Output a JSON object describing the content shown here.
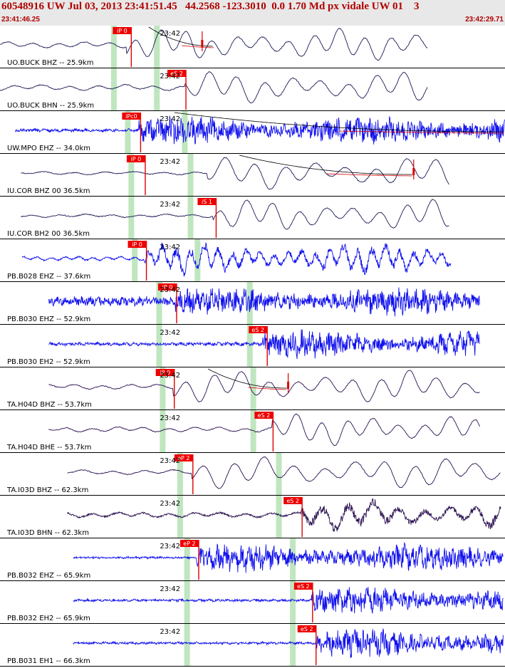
{
  "header": {
    "title": "60548916 UW Jul 03, 2013 23:41:51.45   44.2568 -123.3010  0.0 1.70 Md px vidale UW 01    3",
    "start_time": "23:41:46.25",
    "end_time": "23:42:29.71"
  },
  "colors": {
    "header_text": "#b00000",
    "pick_box": "#ee0000",
    "pick_line": "#dd0000",
    "green_band": "#bfe6bf",
    "trace_blue": "#1010ee",
    "trace_navy": "#1a1a55",
    "trace_purple": "#2a1050"
  },
  "chart_data": {
    "type": "line",
    "title": "",
    "x_unit": "seconds after 23:41:46.25",
    "x_range": [
      0,
      43.46
    ],
    "minute_tick": {
      "label": "23:42",
      "x": 13.75
    },
    "traces": [
      {
        "label": "UO.BUCK BHZ -- 25.9km",
        "start": 0.0,
        "end": 36.8,
        "color": "navy",
        "style": "smooth",
        "green": [
          9.8,
          13.5
        ],
        "pick": {
          "label": "iP 0",
          "x": 11.3
        },
        "extra_pick_x": 17.4,
        "amp_start": 10.9,
        "noise": 0.42,
        "period": 2.2,
        "coda": true,
        "coda_x": [
          12.8,
          18.5
        ]
      },
      {
        "label": "UO.BUCK BHN -- 25.9km",
        "start": 0.0,
        "end": 36.8,
        "color": "navy",
        "style": "smooth",
        "green": [
          9.8,
          13.5
        ],
        "pick": {
          "label": "eS 2",
          "x": 16.0
        },
        "amp_start": 15.9,
        "noise": 0.4,
        "period": 2.4,
        "coda": false
      },
      {
        "label": "UW.MPO EHZ -- 34.0km",
        "start": 1.3,
        "end": 43.46,
        "color": "blue",
        "style": "noisy",
        "green": [
          11.0,
          15.9
        ],
        "pick": {
          "label": "iPc0",
          "x": 12.1
        },
        "amp_start": 11.9,
        "noise": 0.28,
        "period": 0.9,
        "coda": true,
        "coda_x": [
          15.0,
          43.4
        ]
      },
      {
        "label": "IU.COR BHZ 00 36.5km",
        "start": 1.8,
        "end": 38.7,
        "color": "navy",
        "style": "smooth",
        "green": [
          11.3,
          16.4
        ],
        "pick": {
          "label": "iP 0",
          "x": 12.5
        },
        "extra_pick_x": 35.6,
        "amp_start": 17.8,
        "noise": 0.22,
        "period": 2.6,
        "coda": true,
        "coda_x": [
          20.6,
          35.6
        ]
      },
      {
        "label": "IU.COR BH2 00 36.5km",
        "start": 1.8,
        "end": 38.7,
        "color": "navy",
        "style": "smooth",
        "green": [
          11.3,
          16.4
        ],
        "pick": {
          "label": "iS 1",
          "x": 18.6
        },
        "amp_start": 18.3,
        "noise": 0.22,
        "period": 2.3,
        "coda": false
      },
      {
        "label": "PB.B028 EHZ -- 37.6km",
        "start": 1.9,
        "end": 38.8,
        "color": "blue",
        "style": "mixed",
        "green": [
          11.6,
          17.0
        ],
        "pick": {
          "label": "iP 0",
          "x": 12.6
        },
        "amp_start": 12.4,
        "noise": 0.34,
        "period": 1.2,
        "coda": false
      },
      {
        "label": "PB.B030 EHZ -- 52.9km",
        "start": 4.2,
        "end": 41.3,
        "color": "blue",
        "style": "noisy",
        "green": [
          13.7,
          21.5
        ],
        "pick": {
          "label": "iP 0",
          "x": 15.2
        },
        "amp_start": 15.0,
        "noise": 0.8,
        "period": 0.7,
        "coda": false
      },
      {
        "label": "PB.B030 EH2 -- 52.9km",
        "start": 4.2,
        "end": 41.3,
        "color": "blue",
        "style": "noisy",
        "green": [
          13.7,
          21.5
        ],
        "pick": {
          "label": "eS 2",
          "x": 23.0
        },
        "amp_start": 22.6,
        "noise": 0.3,
        "period": 0.8,
        "coda": false
      },
      {
        "label": "TA.H04D BHZ -- 53.7km",
        "start": 4.2,
        "end": 41.3,
        "color": "purple",
        "style": "smooth",
        "green": [
          14.0,
          21.8
        ],
        "pick": {
          "label": "iP 0",
          "x": 15.0
        },
        "extra_pick_x": 24.8,
        "amp_start": 14.9,
        "noise": 0.36,
        "period": 2.4,
        "coda": true,
        "coda_x": [
          17.9,
          24.8
        ]
      },
      {
        "label": "TA.H04D BHE -- 53.7km",
        "start": 4.2,
        "end": 41.3,
        "color": "purple",
        "style": "smooth",
        "green": [
          14.0,
          21.8
        ],
        "pick": {
          "label": "eS 2",
          "x": 23.5
        },
        "amp_start": 23.4,
        "noise": 0.36,
        "period": 2.2,
        "coda": false
      },
      {
        "label": "TA.I03D BHZ -- 62.3km",
        "start": 5.8,
        "end": 43.1,
        "color": "purple",
        "style": "smooth",
        "green": [
          15.5,
          24.0
        ],
        "pick": {
          "label": "eP 2",
          "x": 16.6
        },
        "amp_start": 16.5,
        "noise": 0.33,
        "period": 2.6,
        "coda": false
      },
      {
        "label": "TA.I03D BHN -- 62.3km",
        "start": 5.8,
        "end": 43.1,
        "color": "purple",
        "style": "mixed",
        "green": [
          15.5,
          24.0
        ],
        "pick": {
          "label": "eS 2",
          "x": 26.0
        },
        "amp_start": 25.9,
        "noise": 0.42,
        "period": 2.2,
        "coda": false
      },
      {
        "label": "PB.B032 EHZ -- 65.9km",
        "start": 6.3,
        "end": 43.3,
        "color": "blue",
        "style": "noisy",
        "green": [
          16.1,
          25.2
        ],
        "pick": {
          "label": "eP 2",
          "x": 17.1
        },
        "amp_start": 16.9,
        "noise": 0.18,
        "period": 0.7,
        "coda": false
      },
      {
        "label": "PB.B032 EH2 -- 65.9km",
        "start": 6.3,
        "end": 43.3,
        "color": "blue",
        "style": "noisy",
        "green": [
          16.1,
          25.2
        ],
        "pick": {
          "label": "eS 2",
          "x": 26.9
        },
        "amp_start": 26.8,
        "noise": 0.22,
        "period": 0.8,
        "coda": false
      },
      {
        "label": "PB.B031 EH1 -- 66.3km",
        "start": 6.3,
        "end": 43.3,
        "color": "blue",
        "style": "noisy",
        "green": [
          16.1,
          25.2
        ],
        "pick": {
          "label": "eS 2",
          "x": 27.2
        },
        "amp_start": 27.1,
        "noise": 0.22,
        "period": 0.8,
        "coda": false
      }
    ]
  }
}
